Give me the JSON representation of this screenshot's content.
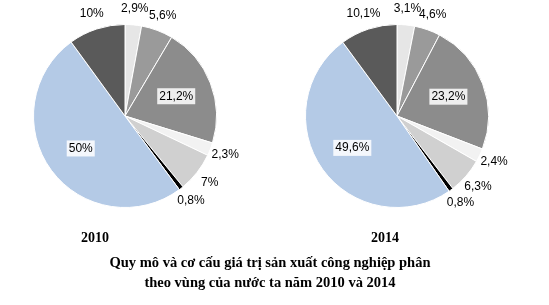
{
  "title": "Quy mô và cơ cấu giá trị sản xuất công nghiệp phân theo vùng của nước ta năm 2010 và 2014",
  "chart_data": [
    {
      "type": "pie",
      "title": "2010",
      "values": [
        2.9,
        5.6,
        21.2,
        2.3,
        7,
        0.8,
        50,
        10
      ],
      "value_labels": [
        "2,9%",
        "5,6%",
        "21,2%",
        "2,3%",
        "7%",
        "0,8%",
        "50%",
        "10%"
      ],
      "colors": [
        "#e6e6e6",
        "#9a9a9a",
        "#8c8c8c",
        "#f2f2f2",
        "#d0d0d0",
        "#000000",
        "#b4cae6",
        "#5a5a5a"
      ],
      "data_labels": true
    },
    {
      "type": "pie",
      "title": "2014",
      "values": [
        3.1,
        4.6,
        23.2,
        2.4,
        6.3,
        0.8,
        49.6,
        10.1
      ],
      "value_labels": [
        "3,1%",
        "4,6%",
        "23,2%",
        "2,4%",
        "6,3%",
        "0,8%",
        "49,6%",
        "10,1%"
      ],
      "colors": [
        "#e6e6e6",
        "#9a9a9a",
        "#8c8c8c",
        "#f2f2f2",
        "#d0d0d0",
        "#000000",
        "#b4cae6",
        "#5a5a5a"
      ],
      "data_labels": true
    }
  ]
}
